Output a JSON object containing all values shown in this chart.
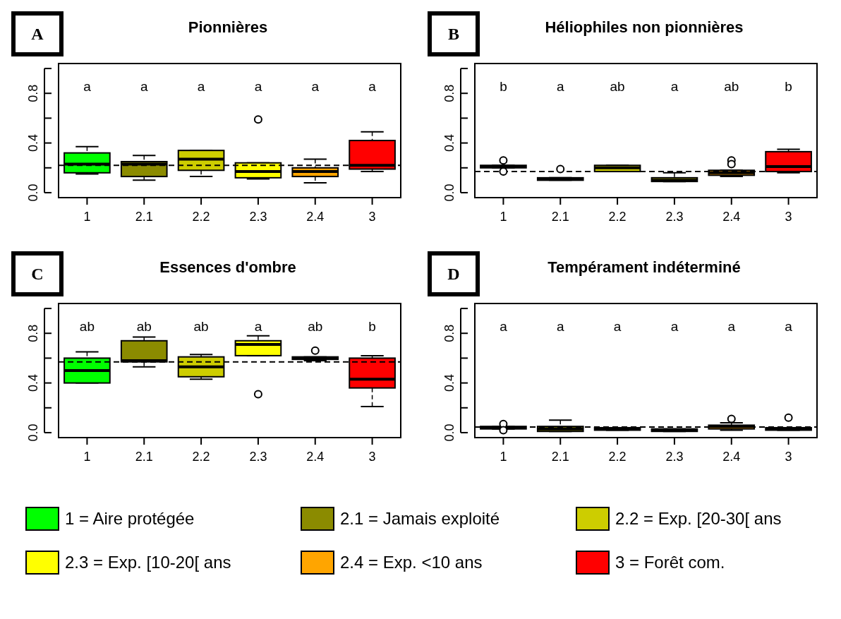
{
  "chart_data": [
    {
      "type": "box",
      "title": "Pionnières",
      "categories": [
        "1",
        "2.1",
        "2.2",
        "2.3",
        "2.4",
        "3"
      ],
      "ylim": [
        -0.04,
        1.04
      ],
      "yticks": [
        {
          "value": 0,
          "label": "0.0"
        },
        {
          "value": 0.2,
          "label": null
        },
        {
          "value": 0.4,
          "label": "0.4"
        },
        {
          "value": 0.6,
          "label": null
        },
        {
          "value": 0.8,
          "label": "0.8"
        },
        {
          "value": 1,
          "label": null
        }
      ],
      "series": [
        {
          "color": "#00ff00",
          "boxes": [
            {
              "low": 0.15,
              "q1": 0.16,
              "median": 0.23,
              "q3": 0.32,
              "high": 0.37
            },
            null,
            null,
            null,
            null,
            null
          ]
        },
        {
          "color": "#8b8b00",
          "boxes": [
            null,
            {
              "low": 0.1,
              "q1": 0.13,
              "median": 0.23,
              "q3": 0.25,
              "high": 0.3
            },
            null,
            null,
            null,
            null
          ]
        },
        {
          "color": "#cdcd00",
          "boxes": [
            null,
            null,
            {
              "low": 0.13,
              "q1": 0.18,
              "median": 0.27,
              "q3": 0.34,
              "high": 0.34
            },
            null,
            null,
            null
          ]
        },
        {
          "color": "#ffff00",
          "boxes": [
            null,
            null,
            null,
            {
              "low": 0.11,
              "q1": 0.12,
              "median": 0.17,
              "q3": 0.24,
              "high": 0.24,
              "outliers": [
                0.59
              ]
            },
            null,
            null
          ]
        },
        {
          "color": "#ffa500",
          "boxes": [
            null,
            null,
            null,
            null,
            {
              "low": 0.08,
              "q1": 0.13,
              "median": 0.17,
              "q3": 0.2,
              "high": 0.27
            },
            null
          ]
        },
        {
          "color": "#ff0000",
          "boxes": [
            null,
            null,
            null,
            null,
            null,
            {
              "low": 0.17,
              "q1": 0.19,
              "median": 0.22,
              "q3": 0.42,
              "high": 0.49
            }
          ]
        }
      ],
      "ref_lines": [
        {
          "axis": "y",
          "value": 0.22,
          "line_style": "dashed"
        }
      ],
      "annotations": [
        "A",
        "a",
        "a",
        "a",
        "a",
        "a",
        "a"
      ]
    },
    {
      "type": "box",
      "title": "Héliophiles non pionnières",
      "categories": [
        "1",
        "2.1",
        "2.2",
        "2.3",
        "2.4",
        "3"
      ],
      "ylim": [
        -0.04,
        1.04
      ],
      "yticks": [
        {
          "value": 0,
          "label": "0.0"
        },
        {
          "value": 0.2,
          "label": null
        },
        {
          "value": 0.4,
          "label": "0.4"
        },
        {
          "value": 0.6,
          "label": null
        },
        {
          "value": 0.8,
          "label": "0.8"
        },
        {
          "value": 1,
          "label": null
        }
      ],
      "series": [
        {
          "color": "#00ff00",
          "boxes": [
            {
              "low": 0.2,
              "q1": 0.2,
              "median": 0.21,
              "q3": 0.22,
              "high": 0.22,
              "outliers": [
                0.26,
                0.17
              ]
            },
            null,
            null,
            null,
            null,
            null
          ]
        },
        {
          "color": "#8b8b00",
          "boxes": [
            null,
            {
              "low": 0.1,
              "q1": 0.1,
              "median": 0.11,
              "q3": 0.12,
              "high": 0.12,
              "outliers": [
                0.19
              ]
            },
            null,
            null,
            null,
            null
          ]
        },
        {
          "color": "#cdcd00",
          "boxes": [
            null,
            null,
            {
              "low": 0.17,
              "q1": 0.17,
              "median": 0.2,
              "q3": 0.22,
              "high": 0.22
            },
            null,
            null,
            null
          ]
        },
        {
          "color": "#ffff00",
          "boxes": [
            null,
            null,
            null,
            {
              "low": 0.09,
              "q1": 0.09,
              "median": 0.1,
              "q3": 0.12,
              "high": 0.16
            },
            null,
            null
          ]
        },
        {
          "color": "#ffa500",
          "boxes": [
            null,
            null,
            null,
            null,
            {
              "low": 0.13,
              "q1": 0.14,
              "median": 0.16,
              "q3": 0.18,
              "high": 0.18,
              "outliers": [
                0.26,
                0.23
              ]
            },
            null
          ]
        },
        {
          "color": "#ff0000",
          "boxes": [
            null,
            null,
            null,
            null,
            null,
            {
              "low": 0.16,
              "q1": 0.17,
              "median": 0.21,
              "q3": 0.33,
              "high": 0.35
            }
          ]
        }
      ],
      "ref_lines": [
        {
          "axis": "y",
          "value": 0.17,
          "line_style": "dashed"
        }
      ],
      "annotations": [
        "B",
        "b",
        "a",
        "ab",
        "a",
        "ab",
        "b"
      ]
    },
    {
      "type": "box",
      "title": "Essences d'ombre",
      "categories": [
        "1",
        "2.1",
        "2.2",
        "2.3",
        "2.4",
        "3"
      ],
      "ylim": [
        -0.04,
        1.04
      ],
      "yticks": [
        {
          "value": 0,
          "label": "0.0"
        },
        {
          "value": 0.2,
          "label": null
        },
        {
          "value": 0.4,
          "label": "0.4"
        },
        {
          "value": 0.6,
          "label": null
        },
        {
          "value": 0.8,
          "label": "0.8"
        },
        {
          "value": 1,
          "label": null
        }
      ],
      "series": [
        {
          "color": "#00ff00",
          "boxes": [
            {
              "low": 0.4,
              "q1": 0.4,
              "median": 0.5,
              "q3": 0.6,
              "high": 0.65
            },
            null,
            null,
            null,
            null,
            null
          ]
        },
        {
          "color": "#8b8b00",
          "boxes": [
            null,
            {
              "low": 0.53,
              "q1": 0.57,
              "median": 0.58,
              "q3": 0.74,
              "high": 0.77
            },
            null,
            null,
            null,
            null
          ]
        },
        {
          "color": "#cdcd00",
          "boxes": [
            null,
            null,
            {
              "low": 0.43,
              "q1": 0.45,
              "median": 0.53,
              "q3": 0.61,
              "high": 0.63
            },
            null,
            null,
            null
          ]
        },
        {
          "color": "#ffff00",
          "boxes": [
            null,
            null,
            null,
            {
              "low": 0.62,
              "q1": 0.62,
              "median": 0.71,
              "q3": 0.74,
              "high": 0.78,
              "outliers": [
                0.31
              ]
            },
            null,
            null
          ]
        },
        {
          "color": "#ffa500",
          "boxes": [
            null,
            null,
            null,
            null,
            {
              "low": 0.58,
              "q1": 0.59,
              "median": 0.6,
              "q3": 0.61,
              "high": 0.61,
              "outliers": [
                0.66
              ]
            },
            null
          ]
        },
        {
          "color": "#ff0000",
          "boxes": [
            null,
            null,
            null,
            null,
            null,
            {
              "low": 0.21,
              "q1": 0.36,
              "median": 0.43,
              "q3": 0.6,
              "high": 0.62
            }
          ]
        }
      ],
      "ref_lines": [
        {
          "axis": "y",
          "value": 0.57,
          "line_style": "dashed"
        }
      ],
      "annotations": [
        "C",
        "ab",
        "ab",
        "ab",
        "a",
        "ab",
        "b"
      ]
    },
    {
      "type": "box",
      "title": "Tempérament indéterminé",
      "categories": [
        "1",
        "2.1",
        "2.2",
        "2.3",
        "2.4",
        "3"
      ],
      "ylim": [
        -0.04,
        1.04
      ],
      "yticks": [
        {
          "value": 0,
          "label": "0.0"
        },
        {
          "value": 0.2,
          "label": null
        },
        {
          "value": 0.4,
          "label": "0.4"
        },
        {
          "value": 0.6,
          "label": null
        },
        {
          "value": 0.8,
          "label": "0.8"
        },
        {
          "value": 1,
          "label": null
        }
      ],
      "legend": "bottom",
      "series": [
        {
          "name": "1 = Aire protégée",
          "color": "#00ff00",
          "boxes": [
            {
              "low": 0.03,
              "q1": 0.03,
              "median": 0.04,
              "q3": 0.05,
              "high": 0.05,
              "outliers": [
                0.07,
                0.02
              ]
            },
            null,
            null,
            null,
            null,
            null
          ]
        },
        {
          "name": "2.1 = Jamais exploité",
          "color": "#8b8b00",
          "boxes": [
            null,
            {
              "low": 0.01,
              "q1": 0.01,
              "median": 0.03,
              "q3": 0.05,
              "high": 0.1
            },
            null,
            null,
            null,
            null
          ]
        },
        {
          "name": "2.2 = Exp. [20-30[ ans",
          "color": "#cdcd00",
          "boxes": [
            null,
            null,
            {
              "low": 0.02,
              "q1": 0.02,
              "median": 0.03,
              "q3": 0.04,
              "high": 0.04
            },
            null,
            null,
            null
          ]
        },
        {
          "name": "2.3 = Exp. [10-20[ ans",
          "color": "#ffff00",
          "boxes": [
            null,
            null,
            null,
            {
              "low": 0.01,
              "q1": 0.01,
              "median": 0.02,
              "q3": 0.03,
              "high": 0.03
            },
            null,
            null
          ]
        },
        {
          "name": "2.4 = Exp. <10 ans",
          "color": "#ffa500",
          "boxes": [
            null,
            null,
            null,
            null,
            {
              "low": 0.02,
              "q1": 0.03,
              "median": 0.05,
              "q3": 0.06,
              "high": 0.08,
              "outliers": [
                0.11
              ]
            },
            null
          ]
        },
        {
          "name": "3 = Forêt com.",
          "color": "#ff0000",
          "boxes": [
            null,
            null,
            null,
            null,
            null,
            {
              "low": 0.02,
              "q1": 0.02,
              "median": 0.03,
              "q3": 0.04,
              "high": 0.04,
              "outliers": [
                0.12
              ]
            }
          ]
        }
      ],
      "ref_lines": [
        {
          "axis": "y",
          "value": 0.045,
          "line_style": "dashed"
        }
      ],
      "annotations": [
        "D",
        "a",
        "a",
        "a",
        "a",
        "a",
        "a"
      ]
    }
  ]
}
